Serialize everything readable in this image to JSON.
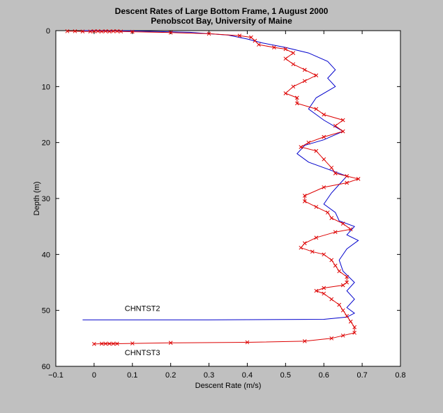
{
  "chart_data": {
    "type": "line",
    "title": "Descent Rates of Large Bottom Frame, 1 August 2000",
    "subtitle": "Penobscot Bay, University of Maine",
    "xlabel": "Descent Rate (m/s)",
    "ylabel": "Depth (m)",
    "xlim": [
      -0.1,
      0.8
    ],
    "ylim": [
      0,
      60
    ],
    "y_reversed": true,
    "grid": false,
    "x_ticks": [
      "−0.1",
      "0",
      "0.1",
      "0.2",
      "0.3",
      "0.4",
      "0.5",
      "0.6",
      "0.7",
      "0.8"
    ],
    "y_ticks": [
      "0",
      "10",
      "20",
      "30",
      "40",
      "50",
      "60"
    ],
    "annotations": [
      {
        "text": "CHNTST2",
        "x": 0.08,
        "y": 50.1
      },
      {
        "text": "CHNTST3",
        "x": 0.08,
        "y": 58.0
      }
    ],
    "series": [
      {
        "name": "CHNTST2",
        "color": "#0000cc",
        "marker": "none",
        "points": [
          [
            -0.03,
            0.0
          ],
          [
            0.1,
            0.05
          ],
          [
            0.25,
            0.3
          ],
          [
            0.35,
            0.8
          ],
          [
            0.4,
            1.5
          ],
          [
            0.44,
            2.2
          ],
          [
            0.5,
            3.0
          ],
          [
            0.56,
            4.0
          ],
          [
            0.61,
            5.5
          ],
          [
            0.63,
            7.0
          ],
          [
            0.61,
            8.5
          ],
          [
            0.63,
            10.0
          ],
          [
            0.58,
            12.0
          ],
          [
            0.56,
            14.0
          ],
          [
            0.6,
            16.0
          ],
          [
            0.65,
            18.0
          ],
          [
            0.6,
            19.5
          ],
          [
            0.55,
            20.5
          ],
          [
            0.53,
            22.0
          ],
          [
            0.56,
            23.5
          ],
          [
            0.62,
            25.0
          ],
          [
            0.66,
            26.0
          ],
          [
            0.64,
            27.5
          ],
          [
            0.62,
            29.0
          ],
          [
            0.6,
            31.0
          ],
          [
            0.63,
            32.5
          ],
          [
            0.64,
            34.0
          ],
          [
            0.68,
            35.0
          ],
          [
            0.66,
            36.5
          ],
          [
            0.69,
            37.5
          ],
          [
            0.66,
            39.0
          ],
          [
            0.64,
            41.0
          ],
          [
            0.65,
            43.0
          ],
          [
            0.68,
            45.0
          ],
          [
            0.66,
            46.5
          ],
          [
            0.68,
            48.0
          ],
          [
            0.66,
            49.5
          ],
          [
            0.68,
            50.5
          ],
          [
            0.66,
            51.2
          ],
          [
            0.6,
            51.6
          ],
          [
            0.3,
            51.7
          ],
          [
            0.0,
            51.7
          ],
          [
            -0.03,
            51.7
          ]
        ]
      },
      {
        "name": "CHNTST3",
        "color": "#dd0000",
        "marker": "x",
        "points": [
          [
            -0.07,
            0.1
          ],
          [
            -0.05,
            0.1
          ],
          [
            -0.03,
            0.15
          ],
          [
            -0.01,
            0.15
          ],
          [
            0.0,
            0.1
          ],
          [
            0.01,
            0.1
          ],
          [
            0.02,
            0.15
          ],
          [
            0.03,
            0.1
          ],
          [
            0.04,
            0.15
          ],
          [
            0.05,
            0.1
          ],
          [
            0.06,
            0.1
          ],
          [
            0.07,
            0.15
          ],
          [
            0.1,
            0.2
          ],
          [
            0.2,
            0.35
          ],
          [
            0.3,
            0.55
          ],
          [
            0.38,
            0.9
          ],
          [
            0.41,
            1.2
          ],
          [
            0.42,
            1.8
          ],
          [
            0.43,
            2.5
          ],
          [
            0.47,
            3.0
          ],
          [
            0.5,
            3.3
          ],
          [
            0.52,
            4.0
          ],
          [
            0.5,
            5.0
          ],
          [
            0.52,
            6.0
          ],
          [
            0.55,
            7.0
          ],
          [
            0.58,
            8.0
          ],
          [
            0.55,
            9.0
          ],
          [
            0.52,
            10.0
          ],
          [
            0.5,
            11.2
          ],
          [
            0.53,
            12.0
          ],
          [
            0.53,
            13.0
          ],
          [
            0.58,
            14.0
          ],
          [
            0.6,
            15.0
          ],
          [
            0.65,
            16.0
          ],
          [
            0.63,
            17.0
          ],
          [
            0.65,
            18.0
          ],
          [
            0.6,
            19.0
          ],
          [
            0.56,
            20.0
          ],
          [
            0.54,
            20.8
          ],
          [
            0.58,
            21.5
          ],
          [
            0.6,
            23.0
          ],
          [
            0.62,
            24.5
          ],
          [
            0.63,
            25.5
          ],
          [
            0.66,
            26.0
          ],
          [
            0.69,
            26.5
          ],
          [
            0.66,
            27.2
          ],
          [
            0.6,
            28.0
          ],
          [
            0.55,
            29.5
          ],
          [
            0.55,
            30.5
          ],
          [
            0.58,
            31.5
          ],
          [
            0.61,
            32.5
          ],
          [
            0.62,
            33.5
          ],
          [
            0.65,
            34.5
          ],
          [
            0.67,
            35.5
          ],
          [
            0.63,
            36.0
          ],
          [
            0.58,
            37.0
          ],
          [
            0.55,
            38.0
          ],
          [
            0.54,
            38.8
          ],
          [
            0.57,
            39.5
          ],
          [
            0.6,
            40.0
          ],
          [
            0.62,
            41.0
          ],
          [
            0.63,
            42.0
          ],
          [
            0.64,
            43.0
          ],
          [
            0.66,
            44.0
          ],
          [
            0.66,
            45.0
          ],
          [
            0.65,
            45.5
          ],
          [
            0.6,
            46.0
          ],
          [
            0.58,
            46.5
          ],
          [
            0.6,
            47.0
          ],
          [
            0.62,
            48.0
          ],
          [
            0.64,
            49.0
          ],
          [
            0.65,
            50.0
          ],
          [
            0.66,
            51.0
          ],
          [
            0.67,
            52.0
          ],
          [
            0.68,
            53.0
          ],
          [
            0.68,
            54.0
          ],
          [
            0.65,
            54.5
          ],
          [
            0.62,
            55.0
          ],
          [
            0.55,
            55.5
          ],
          [
            0.4,
            55.7
          ],
          [
            0.2,
            55.8
          ],
          [
            0.1,
            55.9
          ],
          [
            0.06,
            55.95
          ],
          [
            0.05,
            55.95
          ],
          [
            0.04,
            55.95
          ],
          [
            0.03,
            55.95
          ],
          [
            0.02,
            55.95
          ],
          [
            0.0,
            56.0
          ]
        ]
      }
    ]
  }
}
